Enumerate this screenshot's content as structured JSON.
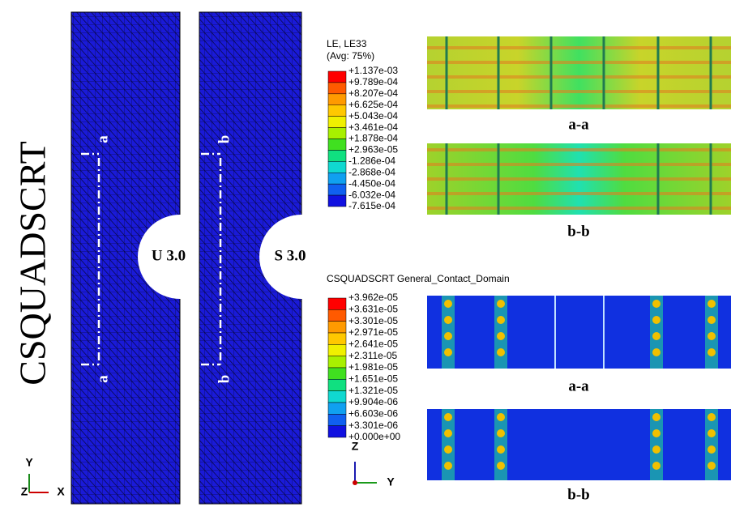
{
  "side_label": "CSQUADSCRT",
  "panels": [
    {
      "label": "U 3.0",
      "marks": [
        "a",
        "a"
      ]
    },
    {
      "label": "S 3.0",
      "marks": [
        "b",
        "b"
      ]
    }
  ],
  "legend1": {
    "title_lines": [
      "LE, LE33",
      "(Avg: 75%)"
    ],
    "labels": [
      "+1.137e-03",
      "+9.789e-04",
      "+8.207e-04",
      "+6.625e-04",
      "+5.043e-04",
      "+3.461e-04",
      "+1.878e-04",
      "+2.963e-05",
      "-1.286e-04",
      "-2.868e-04",
      "-4.450e-04",
      "-6.032e-04",
      "-7.615e-04"
    ]
  },
  "sections1": [
    "a-a",
    "b-b"
  ],
  "legend2": {
    "title": "CSQUADSCRT General_Contact_Domain",
    "labels": [
      "+3.962e-05",
      "+3.631e-05",
      "+3.301e-05",
      "+2.971e-05",
      "+2.641e-05",
      "+2.311e-05",
      "+1.981e-05",
      "+1.651e-05",
      "+1.321e-05",
      "+9.904e-06",
      "+6.603e-06",
      "+3.301e-06",
      "+0.000e+00"
    ]
  },
  "sections2": [
    "a-a",
    "b-b"
  ],
  "triad1": {
    "y": "Y",
    "z": "Z",
    "x": "X"
  },
  "triad2": {
    "z": "Z",
    "y": "Y"
  }
}
